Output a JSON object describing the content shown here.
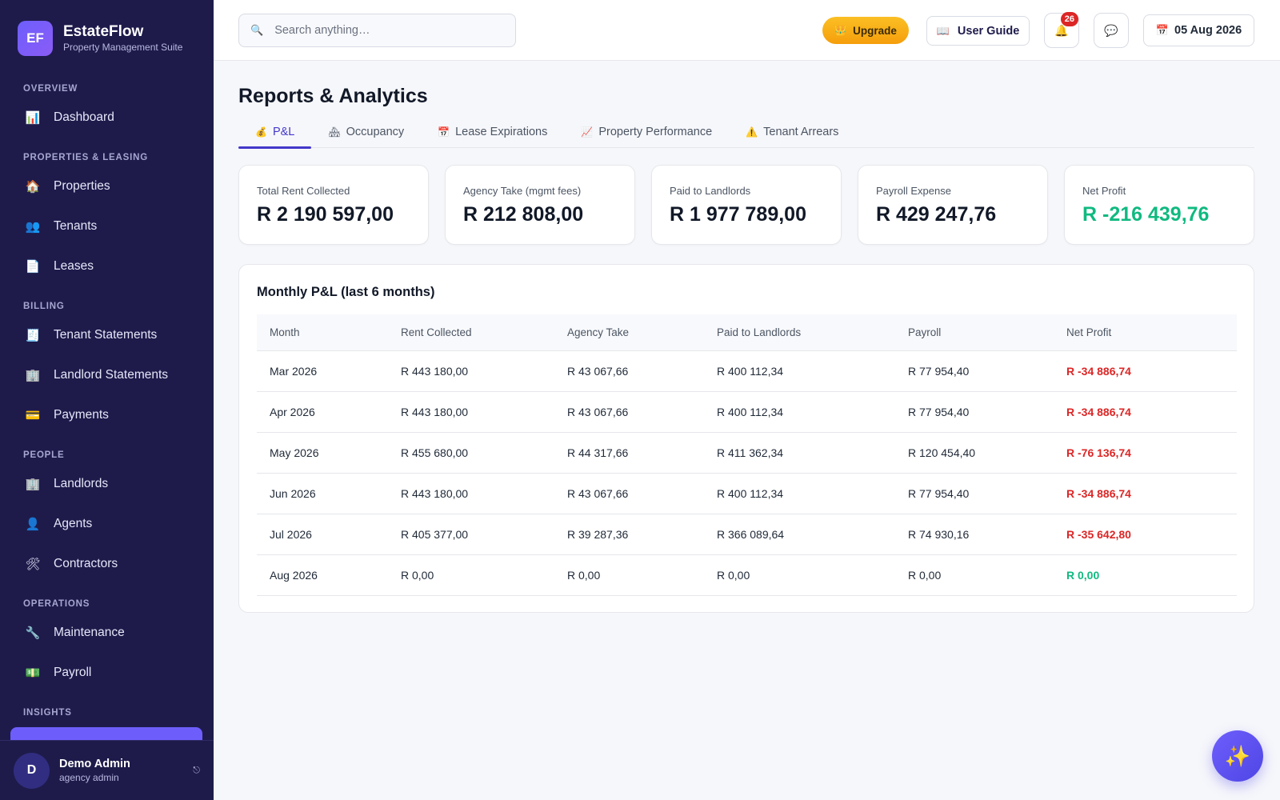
{
  "brand": {
    "logo_text": "EF",
    "name": "EstateFlow",
    "subtitle": "Property Management Suite"
  },
  "sidebar": {
    "sections": [
      {
        "title": "OVERVIEW",
        "items": [
          {
            "label": "Dashboard",
            "icon": "📊",
            "icon_name": "dashboard-icon"
          }
        ]
      },
      {
        "title": "PROPERTIES & LEASING",
        "items": [
          {
            "label": "Properties",
            "icon": "🏠",
            "icon_name": "house-icon"
          },
          {
            "label": "Tenants",
            "icon": "👥",
            "icon_name": "people-icon"
          },
          {
            "label": "Leases",
            "icon": "📄",
            "icon_name": "document-icon"
          }
        ]
      },
      {
        "title": "BILLING",
        "items": [
          {
            "label": "Tenant Statements",
            "icon": "🧾",
            "icon_name": "receipt-icon"
          },
          {
            "label": "Landlord Statements",
            "icon": "🏢",
            "icon_name": "building-icon"
          },
          {
            "label": "Payments",
            "icon": "💳",
            "icon_name": "card-icon"
          }
        ]
      },
      {
        "title": "PEOPLE",
        "items": [
          {
            "label": "Landlords",
            "icon": "🏢",
            "icon_name": "building-icon"
          },
          {
            "label": "Agents",
            "icon": "👤",
            "icon_name": "person-icon"
          },
          {
            "label": "Contractors",
            "icon": "🛠",
            "icon_name": "tools-icon"
          }
        ]
      },
      {
        "title": "OPERATIONS",
        "items": [
          {
            "label": "Maintenance",
            "icon": "🔧",
            "icon_name": "wrench-icon"
          },
          {
            "label": "Payroll",
            "icon": "💵",
            "icon_name": "cash-icon"
          }
        ]
      },
      {
        "title": "INSIGHTS",
        "items": []
      }
    ],
    "accent": "#6d5efc",
    "background": "#1e1b4b"
  },
  "user": {
    "initial": "D",
    "name": "Demo Admin",
    "role": "agency admin"
  },
  "topbar": {
    "search_placeholder": "Search anything…",
    "upgrade_label": "Upgrade",
    "guide_label": "User Guide",
    "notifications_count": "26",
    "date_label": "05 Aug 2026"
  },
  "page": {
    "title": "Reports & Analytics",
    "tabs": [
      {
        "label": "P&L",
        "icon": "💰",
        "icon_name": "money-bag-icon",
        "active": true
      },
      {
        "label": "Occupancy",
        "icon": "🏘",
        "icon_name": "houses-icon",
        "active": false
      },
      {
        "label": "Lease Expirations",
        "icon": "📅",
        "icon_name": "calendar-icon",
        "active": false
      },
      {
        "label": "Property Performance",
        "icon": "📈",
        "icon_name": "trend-chart-icon",
        "active": false
      },
      {
        "label": "Tenant Arrears",
        "icon": "⚠️",
        "icon_name": "warning-icon",
        "active": false
      }
    ]
  },
  "kpis": [
    {
      "label": "Total Rent Collected",
      "value": "R 2 190 597,00",
      "tone": "default"
    },
    {
      "label": "Agency Take (mgmt fees)",
      "value": "R 212 808,00",
      "tone": "default"
    },
    {
      "label": "Paid to Landlords",
      "value": "R 1 977 789,00",
      "tone": "default"
    },
    {
      "label": "Payroll Expense",
      "value": "R 429 247,76",
      "tone": "default"
    },
    {
      "label": "Net Profit",
      "value": "R -216 439,76",
      "tone": "positive"
    }
  ],
  "pl_table": {
    "title": "Monthly P&L (last 6 months)",
    "columns": [
      "Month",
      "Rent Collected",
      "Agency Take",
      "Paid to Landlords",
      "Payroll",
      "Net Profit"
    ],
    "rows": [
      {
        "month": "Mar 2026",
        "rent": "R 443 180,00",
        "agency": "R 43 067,66",
        "landlords": "R 400 112,34",
        "payroll": "R 77 954,40",
        "net": "R -34 886,74",
        "net_tone": "neg"
      },
      {
        "month": "Apr 2026",
        "rent": "R 443 180,00",
        "agency": "R 43 067,66",
        "landlords": "R 400 112,34",
        "payroll": "R 77 954,40",
        "net": "R -34 886,74",
        "net_tone": "neg"
      },
      {
        "month": "May 2026",
        "rent": "R 455 680,00",
        "agency": "R 44 317,66",
        "landlords": "R 411 362,34",
        "payroll": "R 120 454,40",
        "net": "R -76 136,74",
        "net_tone": "neg"
      },
      {
        "month": "Jun 2026",
        "rent": "R 443 180,00",
        "agency": "R 43 067,66",
        "landlords": "R 400 112,34",
        "payroll": "R 77 954,40",
        "net": "R -34 886,74",
        "net_tone": "neg"
      },
      {
        "month": "Jul 2026",
        "rent": "R 405 377,00",
        "agency": "R 39 287,36",
        "landlords": "R 366 089,64",
        "payroll": "R 74 930,16",
        "net": "R -35 642,80",
        "net_tone": "neg"
      },
      {
        "month": "Aug 2026",
        "rent": "R 0,00",
        "agency": "R 0,00",
        "landlords": "R 0,00",
        "payroll": "R 0,00",
        "net": "R 0,00",
        "net_tone": "pos"
      }
    ]
  },
  "colors": {
    "negative": "#dc2626",
    "positive": "#10b981",
    "upgrade": "#f59e0b",
    "tab_active": "#4338ca"
  },
  "fab": {
    "icon": "✨",
    "icon_name": "sparkles-icon"
  }
}
